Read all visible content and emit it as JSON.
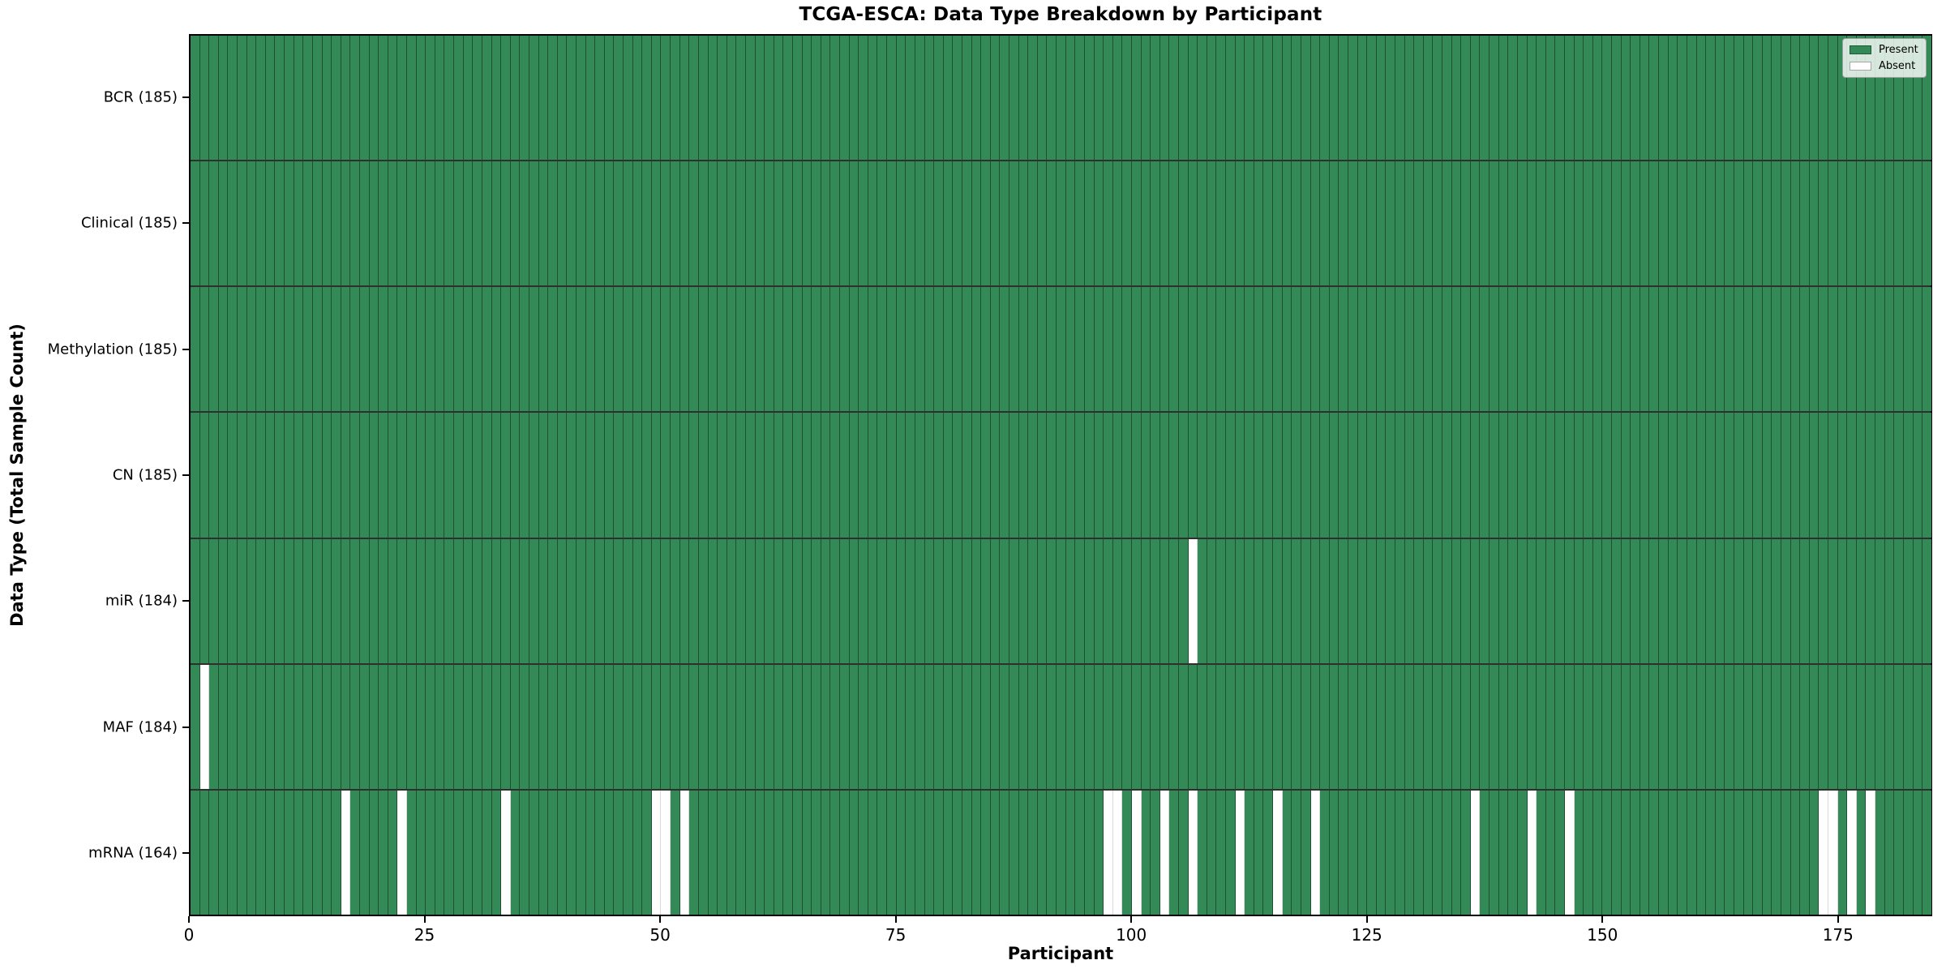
{
  "figure": {
    "title": "TCGA-ESCA: Data Type Breakdown by Participant",
    "xlabel": "Participant",
    "ylabel": "Data Type (Total Sample Count)"
  },
  "chart_data": {
    "type": "heatmap",
    "title": "TCGA-ESCA: Data Type Breakdown by Participant",
    "xlabel": "Participant",
    "ylabel": "Data Type (Total Sample Count)",
    "n_participants": 185,
    "x_range": [
      0,
      185
    ],
    "x_ticks": [
      "0",
      "25",
      "50",
      "75",
      "100",
      "125",
      "150",
      "175"
    ],
    "grid": "cell-edges",
    "colors": {
      "present": "#348a57",
      "absent": "#ffffff"
    },
    "legend": {
      "position": "upper-right",
      "entries": [
        {
          "label": "Present",
          "color": "#348a57"
        },
        {
          "label": "Absent",
          "color": "#ffffff"
        }
      ]
    },
    "rows": [
      {
        "name": "BCR",
        "label": "BCR (185)",
        "present_count": 185,
        "absent_participants": []
      },
      {
        "name": "Clinical",
        "label": "Clinical (185)",
        "present_count": 185,
        "absent_participants": []
      },
      {
        "name": "Methylation",
        "label": "Methylation (185)",
        "present_count": 185,
        "absent_participants": []
      },
      {
        "name": "CN",
        "label": "CN (185)",
        "present_count": 185,
        "absent_participants": []
      },
      {
        "name": "miR",
        "label": "miR (184)",
        "present_count": 184,
        "absent_participants": [
          106
        ]
      },
      {
        "name": "MAF",
        "label": "MAF (184)",
        "present_count": 184,
        "absent_participants": [
          1
        ]
      },
      {
        "name": "mRNA",
        "label": "mRNA (164)",
        "present_count": 164,
        "absent_participants": [
          16,
          22,
          33,
          49,
          50,
          52,
          97,
          98,
          100,
          103,
          106,
          111,
          115,
          119,
          136,
          142,
          146,
          173,
          174,
          176,
          178
        ]
      }
    ]
  }
}
